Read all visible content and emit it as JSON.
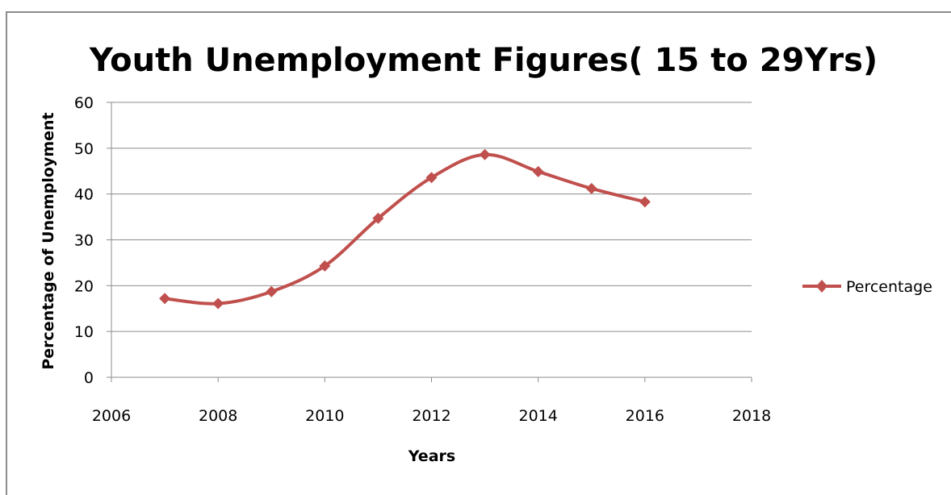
{
  "chart_data": {
    "type": "line",
    "title": "Youth Unemployment Figures( 15 to 29Yrs)",
    "xlabel": "Years",
    "ylabel": "Percentage of Unemployment",
    "xlim": [
      2006,
      2018
    ],
    "ylim": [
      0,
      60
    ],
    "x_ticks": [
      "2006",
      "2008",
      "2010",
      "2012",
      "2014",
      "2016",
      "2018"
    ],
    "y_ticks": [
      "0",
      "10",
      "20",
      "30",
      "40",
      "50",
      "60"
    ],
    "grid": "horizontal",
    "smooth": true,
    "legend_position": "right",
    "series": [
      {
        "name": "Percentage",
        "color": "#C0504D",
        "marker": "diamond",
        "x": [
          2007,
          2008,
          2009,
          2010,
          2011,
          2012,
          2013,
          2014,
          2015,
          2016
        ],
        "y": [
          17.2,
          16.1,
          18.7,
          24.3,
          34.7,
          43.6,
          48.6,
          44.9,
          41.2,
          38.3
        ]
      }
    ]
  }
}
